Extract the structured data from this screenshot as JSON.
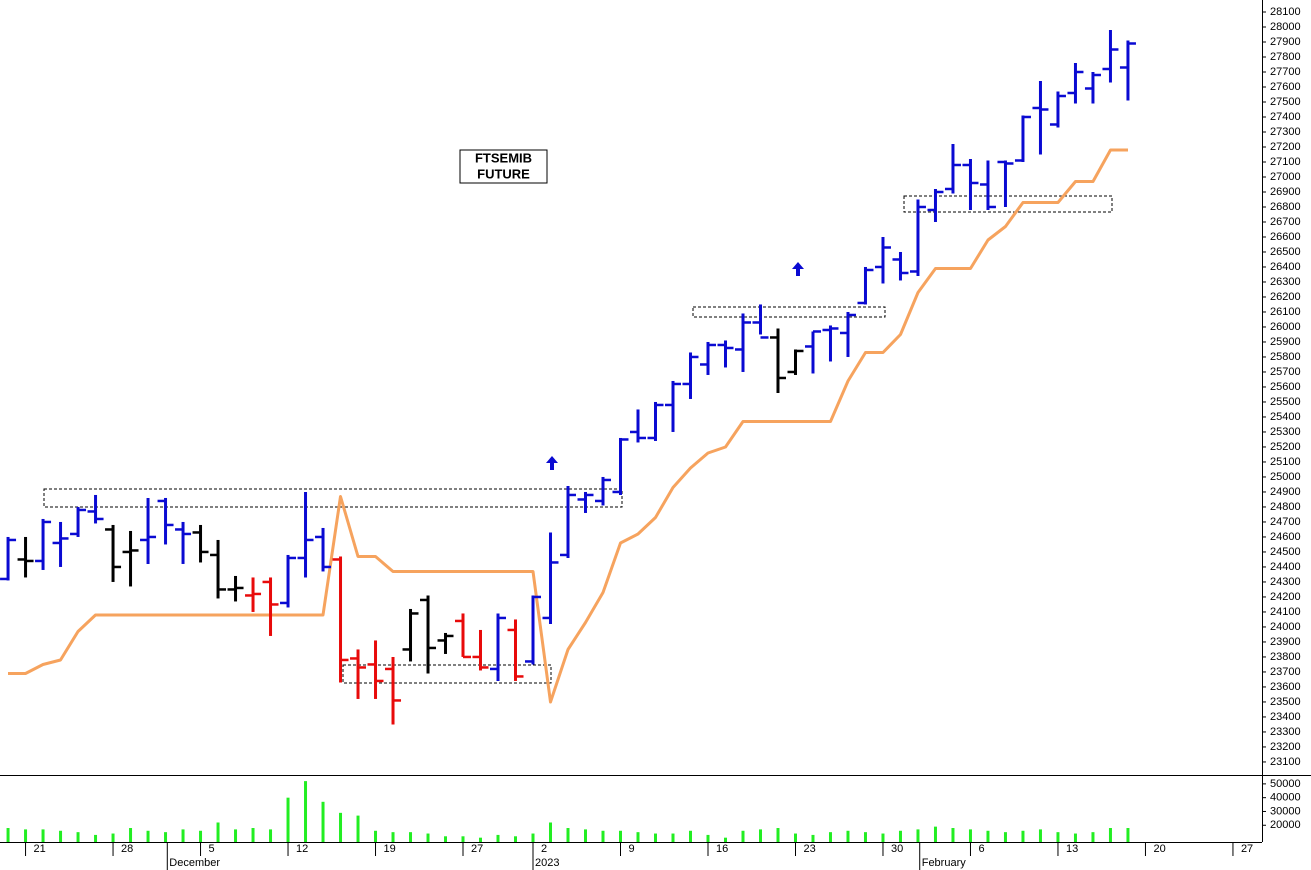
{
  "chart_data": {
    "type": "ohlc",
    "title_lines": [
      "FTSEMIB",
      "FUTURE"
    ],
    "open": [
      24320,
      24450,
      24440,
      24560,
      24620,
      24770,
      24650,
      24500,
      24580,
      24840,
      24650,
      24630,
      24480,
      24250,
      24210,
      24300,
      24160,
      24460,
      24600,
      24450,
      23790,
      23750,
      23720,
      23850,
      24180,
      23910,
      24040,
      23800,
      23720,
      23980,
      23770,
      24060,
      24480,
      24850,
      24840,
      24900,
      25300,
      25260,
      25480,
      25620,
      25750,
      25880,
      25850,
      26030,
      25930,
      25700,
      25870,
      25980,
      25960,
      26160,
      26400,
      26450,
      26370,
      26780,
      26920,
      27080,
      26950,
      27100,
      27110,
      27460,
      27350,
      27560,
      27590,
      27720,
      27730
    ],
    "high": [
      24600,
      24600,
      24720,
      24700,
      24800,
      24880,
      24680,
      24640,
      24860,
      24860,
      24700,
      24680,
      24580,
      24340,
      24330,
      24330,
      24480,
      24900,
      24660,
      24470,
      23850,
      23910,
      23800,
      24120,
      24210,
      23960,
      24090,
      23980,
      24090,
      24050,
      24210,
      24630,
      24940,
      24900,
      25000,
      25260,
      25450,
      25500,
      25640,
      25830,
      25900,
      25910,
      26090,
      26150,
      25990,
      25850,
      25970,
      26010,
      26100,
      26400,
      26600,
      26500,
      26850,
      26920,
      27220,
      27120,
      27110,
      27110,
      27410,
      27640,
      27570,
      27760,
      27700,
      27980,
      27910
    ],
    "low": [
      24310,
      24330,
      24380,
      24400,
      24600,
      24690,
      24300,
      24270,
      24420,
      24550,
      24420,
      24430,
      24190,
      24170,
      24100,
      23940,
      24130,
      24330,
      24370,
      23630,
      23520,
      23520,
      23350,
      23770,
      23690,
      23820,
      23800,
      23710,
      23640,
      23640,
      23750,
      24020,
      24460,
      24760,
      24810,
      24880,
      25230,
      25240,
      25300,
      25520,
      25680,
      25730,
      25700,
      25950,
      25560,
      25680,
      25690,
      25770,
      25800,
      26150,
      26290,
      26310,
      26340,
      26700,
      26890,
      26780,
      26780,
      26800,
      27100,
      27150,
      27330,
      27490,
      27490,
      27630,
      27510
    ],
    "close": [
      24580,
      24440,
      24700,
      24590,
      24780,
      24720,
      24400,
      24510,
      24600,
      24680,
      24620,
      24500,
      24250,
      24260,
      24220,
      24150,
      24460,
      24580,
      24400,
      23780,
      23730,
      23640,
      23510,
      24090,
      23860,
      23940,
      23800,
      23730,
      24060,
      23670,
      24200,
      24430,
      24880,
      24880,
      24980,
      25250,
      25260,
      25480,
      25620,
      25800,
      25880,
      25860,
      26030,
      25930,
      25660,
      25840,
      25970,
      25990,
      26080,
      26380,
      26530,
      26360,
      26800,
      26900,
      27080,
      26960,
      26800,
      27090,
      27400,
      27450,
      27540,
      27700,
      27680,
      27850,
      27890
    ],
    "bar_color": [
      "b",
      "k",
      "b",
      "b",
      "b",
      "b",
      "k",
      "k",
      "b",
      "b",
      "b",
      "k",
      "k",
      "k",
      "r",
      "r",
      "b",
      "b",
      "b",
      "r",
      "r",
      "r",
      "r",
      "k",
      "k",
      "k",
      "r",
      "r",
      "b",
      "r",
      "b",
      "b",
      "b",
      "b",
      "b",
      "b",
      "b",
      "b",
      "b",
      "b",
      "b",
      "b",
      "b",
      "b",
      "k",
      "k",
      "b",
      "b",
      "b",
      "b",
      "b",
      "b",
      "b",
      "b",
      "b",
      "b",
      "b",
      "b",
      "b",
      "b",
      "b",
      "b",
      "b",
      "b",
      "b"
    ],
    "palette": {
      "b": "#0a0ad2",
      "k": "#000000",
      "r": "#e80a0a"
    },
    "trail": [
      23690,
      23690,
      23750,
      23780,
      23970,
      24080,
      24080,
      24080,
      24080,
      24080,
      24080,
      24080,
      24080,
      24080,
      24080,
      24080,
      24080,
      24080,
      24080,
      24870,
      24470,
      24470,
      24370,
      24370,
      24370,
      24370,
      24370,
      24370,
      24370,
      24370,
      24370,
      23500,
      23850,
      24030,
      24230,
      24560,
      24620,
      24730,
      24930,
      25060,
      25160,
      25200,
      25370,
      25370,
      25370,
      25370,
      25370,
      25370,
      25640,
      25830,
      25830,
      25950,
      26230,
      26390,
      26390,
      26390,
      26580,
      26670,
      26830,
      26830,
      26830,
      26970,
      26970,
      27180,
      27180
    ],
    "trail_color": "#f6a35e",
    "volume": [
      18000,
      17000,
      17000,
      16000,
      15000,
      13000,
      14000,
      18000,
      16000,
      15000,
      17000,
      16000,
      22000,
      17000,
      18000,
      17000,
      40000,
      52000,
      37000,
      29000,
      27000,
      16000,
      15000,
      15000,
      14000,
      12000,
      12000,
      11000,
      13000,
      12000,
      14000,
      22000,
      18000,
      17000,
      16000,
      16000,
      15000,
      14000,
      14000,
      16000,
      13000,
      11000,
      16000,
      17000,
      18000,
      14000,
      13000,
      15000,
      16000,
      15000,
      14000,
      16000,
      17000,
      19000,
      18000,
      17000,
      16000,
      15000,
      16000,
      17000,
      15000,
      14000,
      15000,
      18000,
      18000
    ],
    "volume_color": "#22ee22",
    "ylim": [
      23013,
      28180
    ],
    "yticks": [
      23100,
      23200,
      23300,
      23400,
      23500,
      23600,
      23700,
      23800,
      23900,
      24000,
      24100,
      24200,
      24300,
      24400,
      24500,
      24600,
      24700,
      24800,
      24900,
      25000,
      25100,
      25200,
      25300,
      25400,
      25500,
      25600,
      25700,
      25800,
      25900,
      26000,
      26100,
      26200,
      26300,
      26400,
      26500,
      26600,
      26700,
      26800,
      26900,
      27000,
      27100,
      27200,
      27300,
      27400,
      27500,
      27600,
      27700,
      27800,
      27900,
      28000,
      28100
    ],
    "volume_ylim": [
      7860,
      55710
    ],
    "volume_yticks": [
      20000,
      30000,
      40000,
      50000
    ],
    "xlim": [
      -0.46,
      71.66
    ],
    "xticks": [
      {
        "value": 1,
        "label": "21"
      },
      {
        "value": 6,
        "label": "28"
      },
      {
        "value": 11,
        "label": "5"
      },
      {
        "value": 16,
        "label": "12"
      },
      {
        "value": 21,
        "label": "19"
      },
      {
        "value": 26,
        "label": "27"
      },
      {
        "value": 30,
        "label": "2"
      },
      {
        "value": 35,
        "label": "9"
      },
      {
        "value": 40,
        "label": "16"
      },
      {
        "value": 45,
        "label": "23"
      },
      {
        "value": 50,
        "label": "30"
      },
      {
        "value": 55,
        "label": "6"
      },
      {
        "value": 60,
        "label": "13"
      },
      {
        "value": 65,
        "label": "20"
      },
      {
        "value": 70,
        "label": "27"
      }
    ],
    "month_ticks": [
      {
        "value": 9.1,
        "label": "December"
      },
      {
        "value": 30,
        "label": "2023"
      },
      {
        "value": 52.1,
        "label": "February"
      }
    ]
  }
}
